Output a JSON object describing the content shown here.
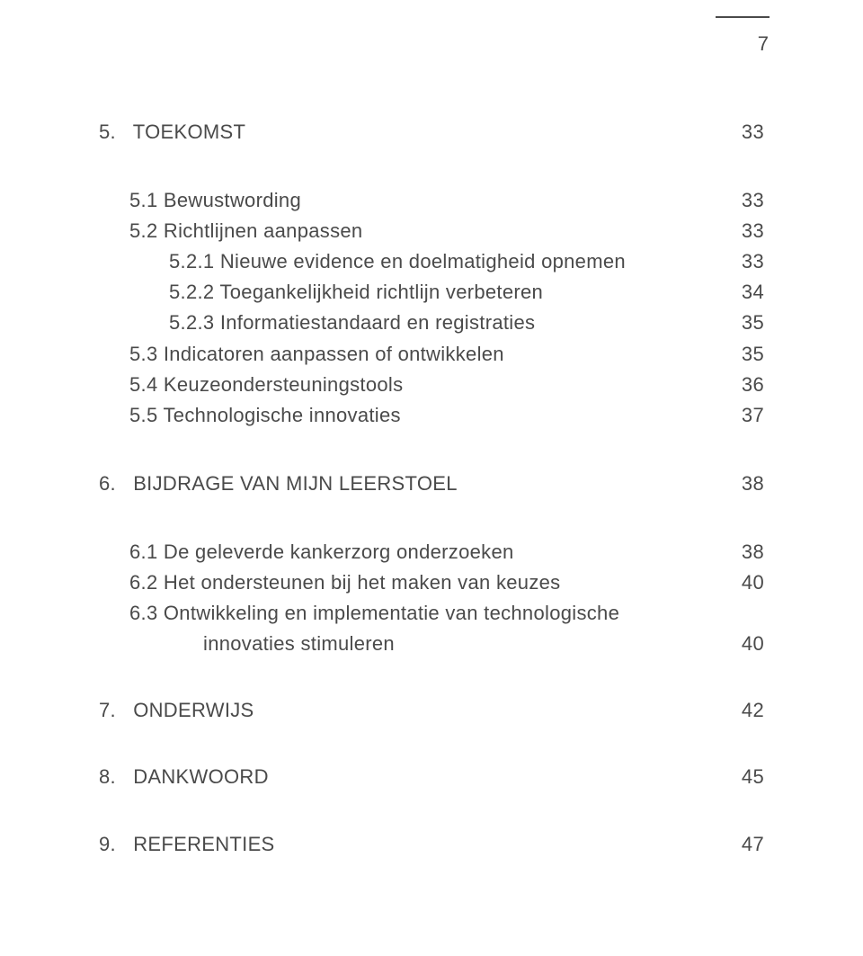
{
  "pageNumber": "7",
  "colors": {
    "text": "#4a4a4a",
    "background": "#ffffff"
  },
  "typography": {
    "body_fontsize_pt": 16,
    "line_height": 1.55
  },
  "toc": {
    "ch5": {
      "num": "5.",
      "title": "TOEKOMST",
      "page": "33",
      "s1": {
        "label": "5.1 Bewustwording",
        "page": "33"
      },
      "s2": {
        "label": "5.2 Richtlijnen aanpassen",
        "page": "33"
      },
      "s2_1": {
        "label": "5.2.1 Nieuwe evidence en doelmatigheid opnemen",
        "page": "33"
      },
      "s2_2": {
        "label": "5.2.2 Toegankelijkheid richtlijn verbeteren",
        "page": "34"
      },
      "s2_3": {
        "label": "5.2.3 Informatiestandaard en registraties",
        "page": "35"
      },
      "s3": {
        "label": "5.3 Indicatoren aanpassen of ontwikkelen",
        "page": "35"
      },
      "s4": {
        "label": "5.4 Keuzeondersteuningstools",
        "page": "36"
      },
      "s5": {
        "label": "5.5 Technologische innovaties",
        "page": "37"
      }
    },
    "ch6": {
      "num": "6.",
      "title": "BIJDRAGE VAN MIJN LEERSTOEL",
      "page": "38",
      "s1": {
        "label": "6.1 De geleverde kankerzorg onderzoeken",
        "page": "38"
      },
      "s2": {
        "label": "6.2 Het ondersteunen bij het maken van keuzes",
        "page": "40"
      },
      "s3a": {
        "label": "6.3 Ontwikkeling en implementatie van technologische"
      },
      "s3b": {
        "label": "innovaties stimuleren",
        "page": "40"
      }
    },
    "ch7": {
      "num": "7.",
      "title": "ONDERWIJS",
      "page": "42"
    },
    "ch8": {
      "num": "8.",
      "title": "DANKWOORD",
      "page": "45"
    },
    "ch9": {
      "num": "9.",
      "title": "REFERENTIES",
      "page": "47"
    }
  }
}
